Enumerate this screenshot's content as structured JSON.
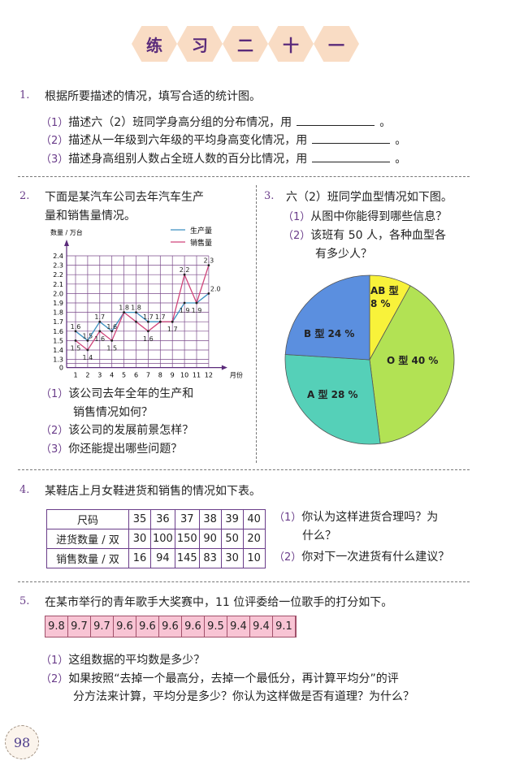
{
  "title": {
    "chars": [
      "练",
      "习",
      "二",
      "十",
      "一"
    ]
  },
  "q1": {
    "num": "1.",
    "text": "根据所要描述的情况，填写合适的统计图。",
    "items": [
      {
        "num": "（1）",
        "text": "描述六（2）班同学身高分组的分布情况，用",
        "end": "。"
      },
      {
        "num": "（2）",
        "text": "描述从一年级到六年级的平均身高变化情况，用",
        "end": "。"
      },
      {
        "num": "（3）",
        "text": "描述身高组别人数占全班人数的百分比情况，用",
        "end": "。"
      }
    ]
  },
  "q2": {
    "num": "2.",
    "line1": "下面是某汽车公司去年汽车生产",
    "line2": "量和销售量情况。",
    "items": [
      {
        "num": "（1）",
        "text": "该公司去年全年的生产和"
      },
      {
        "num": "",
        "text": "销售情况如何？"
      },
      {
        "num": "（2）",
        "text": "该公司的发展前景怎样？"
      },
      {
        "num": "（3）",
        "text": "你还能提出哪些问题？"
      }
    ]
  },
  "q3": {
    "num": "3.",
    "text": "六（2）班同学血型情况如下图。",
    "items": [
      {
        "num": "（1）",
        "text": "从图中你能得到哪些信息？"
      },
      {
        "num": "（2）",
        "text": "该班有 50 人，各种血型各"
      },
      {
        "num": "",
        "text": "有多少人？"
      }
    ]
  },
  "chart_data": [
    {
      "type": "line",
      "ylabel": "数量 / 万台",
      "xlabel": "月份",
      "categories": [
        "1",
        "2",
        "3",
        "4",
        "5",
        "6",
        "7",
        "8",
        "9",
        "10",
        "11",
        "12"
      ],
      "yticks": [
        "0",
        "1.3",
        "1.4",
        "1.5",
        "1.6",
        "1.7",
        "1.8",
        "1.9",
        "2.0",
        "2.1",
        "2.2",
        "2.3",
        "2.4"
      ],
      "ylim": [
        1.3,
        2.4
      ],
      "y_axis_break": true,
      "grid": true,
      "legend": "top-right",
      "series": [
        {
          "name": "生产量",
          "color": "#3a8fc0",
          "values": [
            1.6,
            1.5,
            1.7,
            1.6,
            1.8,
            1.8,
            1.7,
            1.7,
            1.7,
            1.9,
            1.9,
            2.0
          ]
        },
        {
          "name": "销售量",
          "color": "#d0457a",
          "values": [
            1.5,
            1.4,
            1.6,
            1.5,
            1.8,
            1.7,
            1.6,
            1.7,
            1.7,
            2.2,
            1.9,
            2.3
          ]
        }
      ],
      "data_labels": [
        {
          "x": 1,
          "y": 1.6,
          "text": "1.6"
        },
        {
          "x": 2,
          "y": 1.5,
          "text": "1.5"
        },
        {
          "x": 3,
          "y": 1.7,
          "text": "1.7"
        },
        {
          "x": 4,
          "y": 1.6,
          "text": "1.6"
        },
        {
          "x": 5,
          "y": 1.8,
          "text": "1.8"
        },
        {
          "x": 6,
          "y": 1.8,
          "text": "1.8"
        },
        {
          "x": 7,
          "y": 1.7,
          "text": "1.7"
        },
        {
          "x": 8,
          "y": 1.7,
          "text": "1.7"
        },
        {
          "x": 1,
          "y": 1.5,
          "text": "1.5",
          "below": true
        },
        {
          "x": 2,
          "y": 1.4,
          "text": "1.4",
          "below": true
        },
        {
          "x": 3,
          "y": 1.6,
          "text": "1.6",
          "below": true
        },
        {
          "x": 4,
          "y": 1.5,
          "text": "1.5",
          "below": true
        },
        {
          "x": 7,
          "y": 1.6,
          "text": "1.6",
          "below": true
        },
        {
          "x": 9,
          "y": 1.7,
          "text": "1.7",
          "below": true
        },
        {
          "x": 10,
          "y": 1.9,
          "text": "1.9",
          "below": true
        },
        {
          "x": 11,
          "y": 1.9,
          "text": "1.9",
          "below": true
        },
        {
          "x": 12,
          "y": 2.0,
          "text": "2.0",
          "right": true
        },
        {
          "x": 10,
          "y": 2.2,
          "text": "2.2"
        },
        {
          "x": 12,
          "y": 2.3,
          "text": "2.3"
        }
      ]
    },
    {
      "type": "pie",
      "slices": [
        {
          "label": "AB 型",
          "value": 8,
          "pct": "8 %",
          "color": "#f8f23a"
        },
        {
          "label": "O 型",
          "value": 40,
          "pct": "40 %",
          "color": "#b2e254"
        },
        {
          "label": "A 型",
          "value": 28,
          "pct": "28 %",
          "color": "#55d0b8"
        },
        {
          "label": "B 型",
          "value": 24,
          "pct": "24 %",
          "color": "#5b8fdf"
        }
      ]
    }
  ],
  "q4": {
    "num": "4.",
    "text": "某鞋店上月女鞋进货和销售的情况如下表。",
    "table": {
      "rows": [
        [
          "尺码",
          "35",
          "36",
          "37",
          "38",
          "39",
          "40"
        ],
        [
          "进货数量 / 双",
          "30",
          "100",
          "150",
          "90",
          "50",
          "20"
        ],
        [
          "销售数量 / 双",
          "16",
          "94",
          "145",
          "83",
          "30",
          "10"
        ]
      ]
    },
    "items": [
      {
        "num": "（1）",
        "text": "你认为这样进货合理吗？为"
      },
      {
        "num": "",
        "text": "什么？"
      },
      {
        "num": "（2）",
        "text": "你对下一次进货有什么建议？"
      }
    ]
  },
  "q5": {
    "num": "5.",
    "text": "在某市举行的青年歌手大奖赛中，11 位评委给一位歌手的打分如下。",
    "scores": [
      "9.8",
      "9.7",
      "9.7",
      "9.6",
      "9.6",
      "9.6",
      "9.6",
      "9.5",
      "9.4",
      "9.4",
      "9.1"
    ],
    "items": [
      {
        "num": "（1）",
        "text": "这组数据的平均数是多少？"
      },
      {
        "num": "（2）",
        "text": "如果按照“去掉一个最高分，去掉一个最低分，再计算平均分”的评"
      },
      {
        "num": "",
        "text": "分方法来计算，平均分是多少？你认为这样做是否有道理？为什么？"
      }
    ]
  },
  "page_number": "98"
}
